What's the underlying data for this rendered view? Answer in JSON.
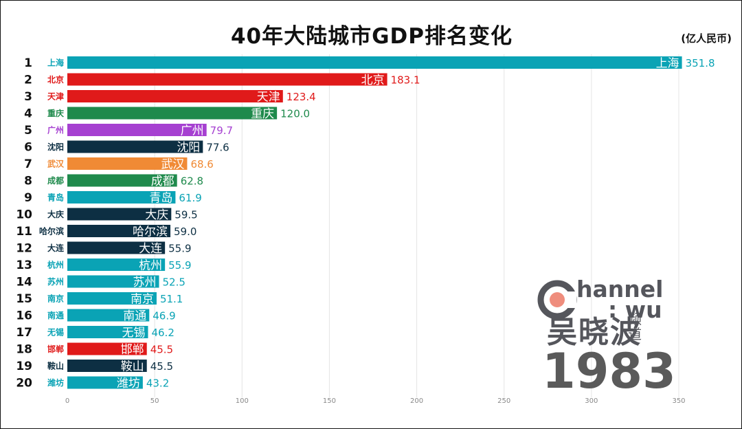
{
  "chart_data": {
    "type": "bar",
    "orientation": "horizontal",
    "title": "40年大陆城市GDP排名变化",
    "unit_label": "(亿人民币)",
    "year": "1983",
    "xlim": [
      0,
      380
    ],
    "xticks": [
      0,
      50,
      100,
      150,
      200,
      250,
      300,
      350
    ],
    "grid": true,
    "bars": [
      {
        "rank": "1",
        "city": "上海",
        "value": 351.8,
        "color": "#0aa3b5"
      },
      {
        "rank": "2",
        "city": "北京",
        "value": 183.1,
        "color": "#e01a1a"
      },
      {
        "rank": "3",
        "city": "天津",
        "value": 123.4,
        "color": "#e01a1a"
      },
      {
        "rank": "4",
        "city": "重庆",
        "value": 120.0,
        "color": "#1f8a4c"
      },
      {
        "rank": "5",
        "city": "广州",
        "value": 79.7,
        "color": "#a640d1"
      },
      {
        "rank": "6",
        "city": "沈阳",
        "value": 77.6,
        "color": "#0d2f43"
      },
      {
        "rank": "7",
        "city": "武汉",
        "value": 68.6,
        "color": "#f08a35"
      },
      {
        "rank": "8",
        "city": "成都",
        "value": 62.8,
        "color": "#1f8a4c"
      },
      {
        "rank": "9",
        "city": "青岛",
        "value": 61.9,
        "color": "#0aa3b5"
      },
      {
        "rank": "10",
        "city": "大庆",
        "value": 59.5,
        "color": "#0d2f43"
      },
      {
        "rank": "11",
        "city": "哈尔滨",
        "value": 59.0,
        "color": "#0d2f43"
      },
      {
        "rank": "12",
        "city": "大连",
        "value": 55.9,
        "color": "#0d2f43"
      },
      {
        "rank": "13",
        "city": "杭州",
        "value": 55.9,
        "color": "#0aa3b5"
      },
      {
        "rank": "14",
        "city": "苏州",
        "value": 52.5,
        "color": "#0aa3b5"
      },
      {
        "rank": "15",
        "city": "南京",
        "value": 51.1,
        "color": "#0aa3b5"
      },
      {
        "rank": "16",
        "city": "南通",
        "value": 46.9,
        "color": "#0aa3b5"
      },
      {
        "rank": "17",
        "city": "无锡",
        "value": 46.2,
        "color": "#0aa3b5"
      },
      {
        "rank": "18",
        "city": "邯郸",
        "value": 45.5,
        "color": "#e01a1a"
      },
      {
        "rank": "19",
        "city": "鞍山",
        "value": 45.5,
        "color": "#0d2f43"
      },
      {
        "rank": "20",
        "city": "潍坊",
        "value": 43.2,
        "color": "#0aa3b5"
      }
    ]
  },
  "watermark": {
    "brand_line1": "hannel",
    "brand_line2": ": wu",
    "brand_cn": "吴晓波",
    "brand_cn_sub": "频道",
    "accent_color": "#ef8d7d",
    "ring_color": "#55565c"
  }
}
